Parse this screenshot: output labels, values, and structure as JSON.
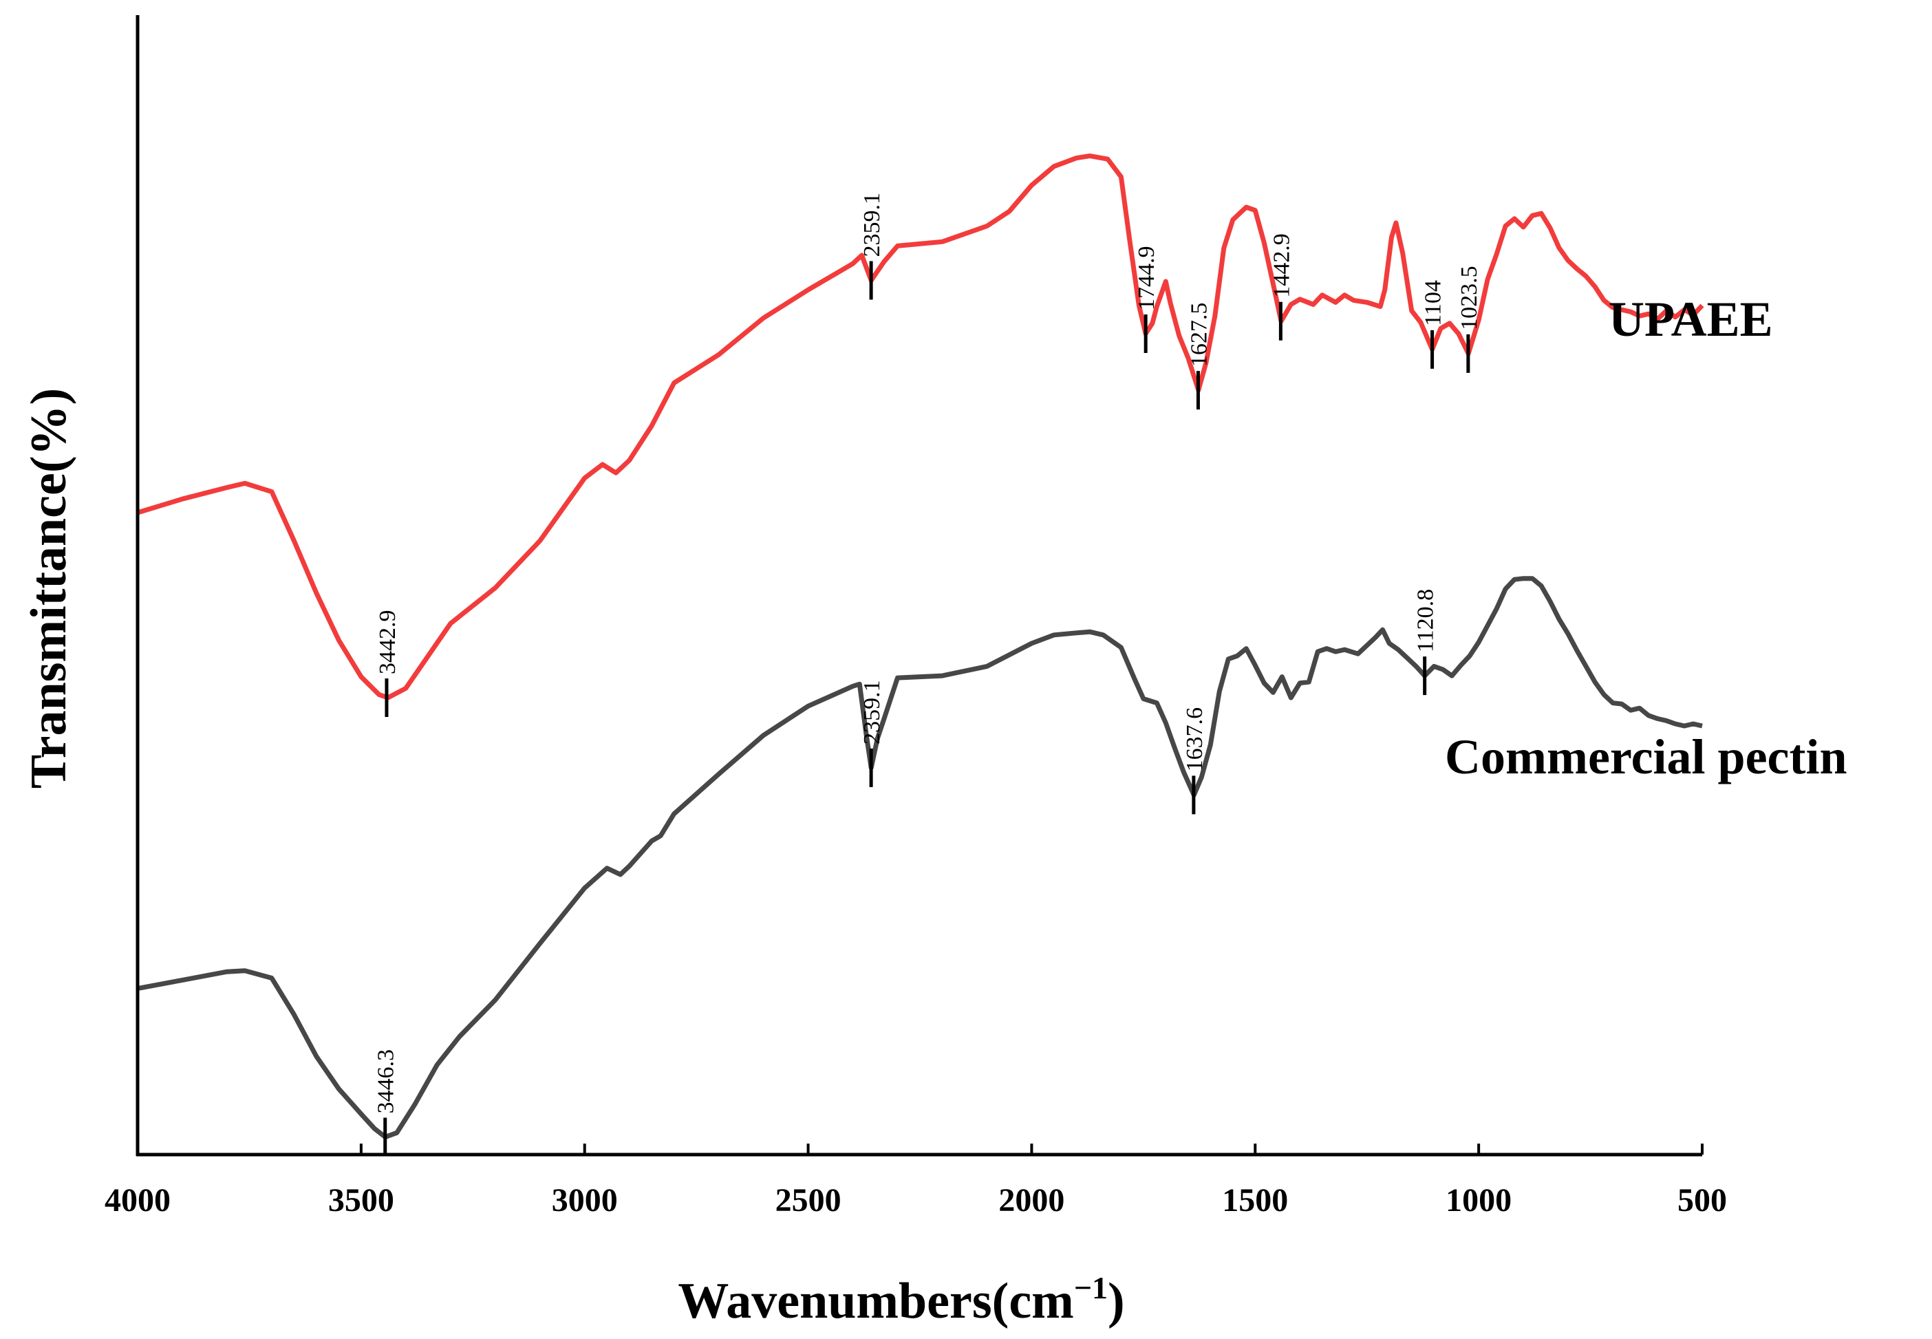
{
  "chart_data": {
    "type": "line",
    "title": "",
    "xlabel": "Wavenumbers(cm",
    "xlabel_superscript": "−1",
    "xlabel_close": ")",
    "ylabel": "Transmittance(%)",
    "xlim": [
      4000,
      500
    ],
    "x_reversed": true,
    "yticks_shown": false,
    "xticks": [
      "4000",
      "3500",
      "3000",
      "2500",
      "2000",
      "1500",
      "1000",
      "500"
    ],
    "series": [
      {
        "name": "UPAEE",
        "color": "#f23c3c",
        "points": [
          [
            4000,
            60.2
          ],
          [
            3900,
            61.5
          ],
          [
            3800,
            62.6
          ],
          [
            3760,
            63.0
          ],
          [
            3700,
            62.2
          ],
          [
            3650,
            57.5
          ],
          [
            3600,
            52.5
          ],
          [
            3550,
            48.0
          ],
          [
            3500,
            44.5
          ],
          [
            3460,
            42.8
          ],
          [
            3440,
            42.5
          ],
          [
            3400,
            43.4
          ],
          [
            3350,
            46.5
          ],
          [
            3300,
            49.6
          ],
          [
            3200,
            53.0
          ],
          [
            3100,
            57.5
          ],
          [
            3000,
            63.5
          ],
          [
            2960,
            64.8
          ],
          [
            2930,
            64.0
          ],
          [
            2900,
            65.2
          ],
          [
            2850,
            68.5
          ],
          [
            2800,
            72.6
          ],
          [
            2700,
            75.3
          ],
          [
            2600,
            78.8
          ],
          [
            2500,
            81.5
          ],
          [
            2400,
            84.0
          ],
          [
            2380,
            84.8
          ],
          [
            2359,
            82.4
          ],
          [
            2330,
            84.2
          ],
          [
            2300,
            85.7
          ],
          [
            2200,
            86.1
          ],
          [
            2100,
            87.6
          ],
          [
            2050,
            89.0
          ],
          [
            2000,
            91.5
          ],
          [
            1950,
            93.3
          ],
          [
            1900,
            94.1
          ],
          [
            1870,
            94.3
          ],
          [
            1830,
            94.0
          ],
          [
            1800,
            92.3
          ],
          [
            1780,
            86.0
          ],
          [
            1760,
            80.0
          ],
          [
            1745,
            77.3
          ],
          [
            1730,
            78.3
          ],
          [
            1720,
            79.9
          ],
          [
            1700,
            82.3
          ],
          [
            1690,
            80.3
          ],
          [
            1670,
            77.1
          ],
          [
            1650,
            75.0
          ],
          [
            1627,
            71.9
          ],
          [
            1610,
            74.5
          ],
          [
            1590,
            79.0
          ],
          [
            1570,
            85.5
          ],
          [
            1550,
            88.2
          ],
          [
            1520,
            89.4
          ],
          [
            1500,
            89.1
          ],
          [
            1480,
            86.0
          ],
          [
            1460,
            82.1
          ],
          [
            1442,
            78.5
          ],
          [
            1420,
            80.1
          ],
          [
            1400,
            80.6
          ],
          [
            1370,
            80.1
          ],
          [
            1350,
            81.0
          ],
          [
            1320,
            80.3
          ],
          [
            1300,
            81.0
          ],
          [
            1280,
            80.5
          ],
          [
            1250,
            80.3
          ],
          [
            1220,
            79.9
          ],
          [
            1210,
            81.5
          ],
          [
            1195,
            86.5
          ],
          [
            1185,
            87.9
          ],
          [
            1170,
            85.0
          ],
          [
            1150,
            79.5
          ],
          [
            1130,
            78.4
          ],
          [
            1104,
            75.8
          ],
          [
            1085,
            77.8
          ],
          [
            1065,
            78.3
          ],
          [
            1045,
            77.3
          ],
          [
            1023,
            75.4
          ],
          [
            1000,
            78.6
          ],
          [
            980,
            82.5
          ],
          [
            960,
            84.9
          ],
          [
            940,
            87.6
          ],
          [
            920,
            88.3
          ],
          [
            900,
            87.5
          ],
          [
            880,
            88.6
          ],
          [
            860,
            88.8
          ],
          [
            840,
            87.4
          ],
          [
            820,
            85.5
          ],
          [
            800,
            84.3
          ],
          [
            780,
            83.5
          ],
          [
            760,
            82.8
          ],
          [
            740,
            81.8
          ],
          [
            720,
            80.5
          ],
          [
            700,
            79.8
          ],
          [
            680,
            79.6
          ],
          [
            660,
            79.4
          ],
          [
            640,
            79.0
          ],
          [
            620,
            79.2
          ],
          [
            600,
            78.7
          ],
          [
            580,
            79.5
          ],
          [
            560,
            78.9
          ],
          [
            540,
            79.6
          ],
          [
            520,
            79.1
          ],
          [
            500,
            80.0
          ]
        ],
        "peak_labels": [
          {
            "wavenumber": 3442.9,
            "label": "3442.9",
            "value": 42.5
          },
          {
            "wavenumber": 2359.1,
            "label": "2359.1",
            "value": 82.4
          },
          {
            "wavenumber": 1744.9,
            "label": "1744.9",
            "value": 77.3
          },
          {
            "wavenumber": 1627.5,
            "label": "1627.5",
            "value": 71.9
          },
          {
            "wavenumber": 1442.9,
            "label": "1442.9",
            "value": 78.5
          },
          {
            "wavenumber": 1104,
            "label": "1104",
            "value": 75.8
          },
          {
            "wavenumber": 1023.5,
            "label": "1023.5",
            "value": 75.4
          }
        ]
      },
      {
        "name": "Commercial pectin",
        "color": "#474747",
        "points": [
          [
            4000,
            14.7
          ],
          [
            3900,
            15.5
          ],
          [
            3800,
            16.3
          ],
          [
            3760,
            16.4
          ],
          [
            3700,
            15.7
          ],
          [
            3650,
            12.2
          ],
          [
            3600,
            8.2
          ],
          [
            3550,
            5.1
          ],
          [
            3500,
            2.7
          ],
          [
            3470,
            1.3
          ],
          [
            3446,
            0.5
          ],
          [
            3420,
            0.9
          ],
          [
            3380,
            3.6
          ],
          [
            3330,
            7.4
          ],
          [
            3280,
            10.1
          ],
          [
            3200,
            13.6
          ],
          [
            3100,
            19.0
          ],
          [
            3000,
            24.3
          ],
          [
            2950,
            26.2
          ],
          [
            2920,
            25.6
          ],
          [
            2900,
            26.4
          ],
          [
            2850,
            28.8
          ],
          [
            2830,
            29.3
          ],
          [
            2800,
            31.4
          ],
          [
            2700,
            35.2
          ],
          [
            2600,
            38.9
          ],
          [
            2500,
            41.7
          ],
          [
            2400,
            43.6
          ],
          [
            2385,
            43.8
          ],
          [
            2370,
            39.0
          ],
          [
            2359,
            35.8
          ],
          [
            2345,
            38.6
          ],
          [
            2330,
            40.5
          ],
          [
            2310,
            43.1
          ],
          [
            2300,
            44.4
          ],
          [
            2200,
            44.6
          ],
          [
            2100,
            45.5
          ],
          [
            2000,
            47.7
          ],
          [
            1950,
            48.5
          ],
          [
            1900,
            48.7
          ],
          [
            1870,
            48.8
          ],
          [
            1840,
            48.5
          ],
          [
            1800,
            47.3
          ],
          [
            1770,
            44.3
          ],
          [
            1750,
            42.4
          ],
          [
            1720,
            42.0
          ],
          [
            1700,
            40.1
          ],
          [
            1680,
            37.7
          ],
          [
            1660,
            35.4
          ],
          [
            1637,
            33.2
          ],
          [
            1620,
            34.9
          ],
          [
            1600,
            38.0
          ],
          [
            1580,
            43.1
          ],
          [
            1560,
            46.2
          ],
          [
            1540,
            46.5
          ],
          [
            1520,
            47.2
          ],
          [
            1500,
            45.6
          ],
          [
            1480,
            43.9
          ],
          [
            1460,
            43.0
          ],
          [
            1440,
            44.5
          ],
          [
            1420,
            42.5
          ],
          [
            1400,
            43.9
          ],
          [
            1380,
            44.0
          ],
          [
            1360,
            46.9
          ],
          [
            1340,
            47.2
          ],
          [
            1320,
            46.9
          ],
          [
            1300,
            47.1
          ],
          [
            1270,
            46.7
          ],
          [
            1250,
            47.5
          ],
          [
            1230,
            48.3
          ],
          [
            1215,
            49.0
          ],
          [
            1200,
            47.7
          ],
          [
            1180,
            47.1
          ],
          [
            1160,
            46.3
          ],
          [
            1140,
            45.5
          ],
          [
            1120.8,
            44.6
          ],
          [
            1100,
            45.5
          ],
          [
            1080,
            45.2
          ],
          [
            1060,
            44.6
          ],
          [
            1040,
            45.6
          ],
          [
            1020,
            46.5
          ],
          [
            1000,
            47.8
          ],
          [
            980,
            49.4
          ],
          [
            960,
            51.0
          ],
          [
            940,
            52.9
          ],
          [
            920,
            53.8
          ],
          [
            900,
            53.9
          ],
          [
            880,
            53.9
          ],
          [
            860,
            53.2
          ],
          [
            840,
            51.7
          ],
          [
            820,
            50.0
          ],
          [
            800,
            48.6
          ],
          [
            780,
            47.0
          ],
          [
            760,
            45.5
          ],
          [
            740,
            44.0
          ],
          [
            720,
            42.8
          ],
          [
            700,
            42.0
          ],
          [
            680,
            41.9
          ],
          [
            660,
            41.3
          ],
          [
            640,
            41.5
          ],
          [
            620,
            40.8
          ],
          [
            600,
            40.5
          ],
          [
            580,
            40.3
          ],
          [
            560,
            40.0
          ],
          [
            540,
            39.8
          ],
          [
            520,
            40.0
          ],
          [
            500,
            39.8
          ]
        ],
        "peak_labels": [
          {
            "wavenumber": 3446.3,
            "label": "3446.3",
            "value": 0.5
          },
          {
            "wavenumber": 2359.1,
            "label": "2359.1",
            "value": 35.8
          },
          {
            "wavenumber": 1637.6,
            "label": "1637.6",
            "value": 33.2
          },
          {
            "wavenumber": 1120.8,
            "label": "1120.8",
            "value": 44.6
          }
        ]
      }
    ],
    "series_labels": [
      "UPAEE",
      "Commercial pectin"
    ]
  }
}
